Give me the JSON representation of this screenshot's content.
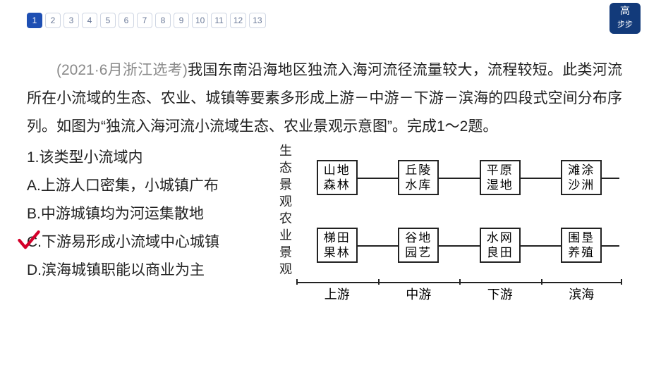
{
  "pager": {
    "items": [
      "1",
      "2",
      "3",
      "4",
      "5",
      "6",
      "7",
      "8",
      "9",
      "10",
      "11",
      "12",
      "13"
    ],
    "active_index": 0,
    "active_bg": "#1e4fb3",
    "inactive_border": "#cfd6e3",
    "inactive_text": "#6b7a99"
  },
  "logo": {
    "line1": "高",
    "line2": "步步"
  },
  "passage": {
    "source": "(2021·6月浙江选考)",
    "text": "我国东南沿海地区独流入海河流径流量较大，流程较短。此类河流所在小流域的生态、农业、城镇等要素多形成上游－中游－下游－滨海的四段式空间分布序列。如图为“独流入海河流小流域生态、农业景观示意图”。完成1～2题。"
  },
  "question": {
    "number_line": "1.该类型小流域内",
    "options": {
      "A": "A.上游人口密集，小城镇广布",
      "B": "B.中游城镇均为河运集散地",
      "C": "C.下游易形成小流域中心城镇",
      "D": "D.滨海城镇职能以商业为主"
    },
    "correct": "C",
    "check_color": "#d4002a"
  },
  "diagram": {
    "row_labels": {
      "eco": "生态景观",
      "agri": "农业景观"
    },
    "columns": [
      "上游",
      "中游",
      "下游",
      "滨海"
    ],
    "eco_cells": [
      [
        "山地",
        "森林"
      ],
      [
        "丘陵",
        "水库"
      ],
      [
        "平原",
        "湿地"
      ],
      [
        "滩涂",
        "沙洲"
      ]
    ],
    "agri_cells": [
      [
        "梯田",
        "果林"
      ],
      [
        "谷地",
        "园艺"
      ],
      [
        "水网",
        "良田"
      ],
      [
        "围垦",
        "养殖"
      ]
    ],
    "border_color": "#222222",
    "font_size_box": 17,
    "font_size_label": 18
  }
}
